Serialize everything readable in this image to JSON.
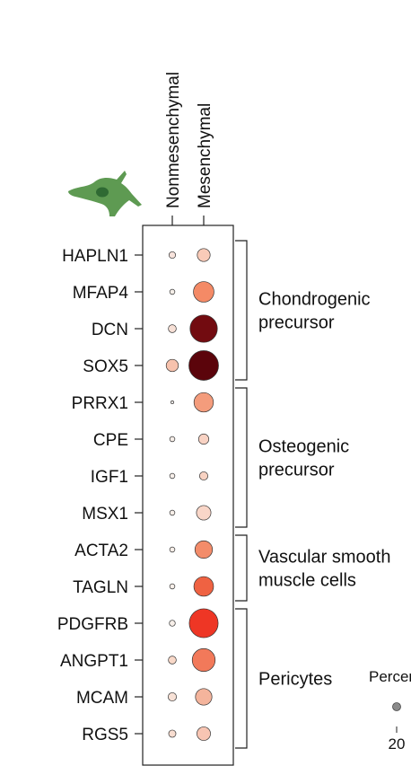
{
  "chart_data": {
    "type": "dotplot",
    "columns": [
      "Nonmesenchymal",
      "Mesenchymal"
    ],
    "genes": [
      "HAPLN1",
      "MFAP4",
      "DCN",
      "SOX5",
      "PRRX1",
      "CPE",
      "IGF1",
      "MSX1",
      "ACTA2",
      "TAGLN",
      "PDGFRB",
      "ANGPT1",
      "MCAM",
      "RGS5"
    ],
    "percent_expressed": {
      "Nonmesenchymal": [
        5,
        3,
        7,
        17,
        1,
        3,
        3,
        3,
        3,
        3,
        4,
        7,
        8,
        6
      ],
      "Mesenchymal": [
        19,
        48,
        85,
        100,
        43,
        12,
        8,
        24,
        35,
        44,
        95,
        60,
        31,
        21
      ]
    },
    "mean_expression_color": {
      "Nonmesenchymal": [
        "#f7e3dc",
        "#f5efe9",
        "#f7e0d6",
        "#f7c2ad",
        "#f9f2ee",
        "#f7efe9",
        "#f7efea",
        "#f7efe9",
        "#f7efe9",
        "#f7efe9",
        "#f7efe9",
        "#f8d8c8",
        "#f7e1d6",
        "#f8ddd0"
      ],
      "Mesenchymal": [
        "#f9cbb8",
        "#f48a66",
        "#720b10",
        "#5b040b",
        "#f49c7c",
        "#f8d2c3",
        "#f8d2c2",
        "#f9d6c8",
        "#f38c6a",
        "#ef6242",
        "#ee3625",
        "#f2795a",
        "#f4b49c",
        "#f8c5b3"
      ]
    },
    "groups": [
      {
        "lines": [
          "Chondrogenic",
          "precursor"
        ],
        "from": 0,
        "to": 3
      },
      {
        "lines": [
          "Osteogenic",
          "precursor"
        ],
        "from": 4,
        "to": 7
      },
      {
        "lines": [
          "Vascular smooth",
          "muscle cells"
        ],
        "from": 8,
        "to": 9
      },
      {
        "lines": [
          "Pericytes"
        ],
        "from": 10,
        "to": 13
      }
    ],
    "legend": {
      "title": "Percent expressed",
      "ticks": [
        20
      ]
    },
    "icon_color": "#5e9a52",
    "icon_nucleus_color": "#2f6a33"
  }
}
